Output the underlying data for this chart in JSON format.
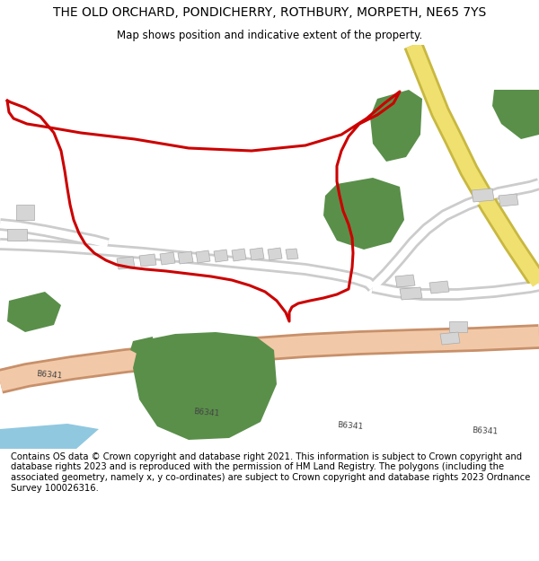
{
  "title": "THE OLD ORCHARD, PONDICHERRY, ROTHBURY, MORPETH, NE65 7YS",
  "subtitle": "Map shows position and indicative extent of the property.",
  "footer": "Contains OS data © Crown copyright and database right 2021. This information is subject to Crown copyright and database rights 2023 and is reproduced with the permission of HM Land Registry. The polygons (including the associated geometry, namely x, y co-ordinates) are subject to Crown copyright and database rights 2023 Ordnance Survey 100026316.",
  "map_bg": "#ffffff",
  "road_b6341_color": "#f2c9a8",
  "road_b6341_border": "#c8906a",
  "road_minor_color": "#ffffff",
  "road_minor_border": "#cccccc",
  "road_yellow_color": "#f0e070",
  "road_yellow_border": "#c8b840",
  "green_color": "#5a8f4a",
  "building_color": "#d5d5d5",
  "building_border": "#aaaaaa",
  "water_color": "#90c8e0",
  "red_line_color": "#cc0000",
  "label_color": "#444444",
  "title_fontsize": 10,
  "subtitle_fontsize": 8.5,
  "footer_fontsize": 7.2,
  "b6341_label_size": 6.5
}
